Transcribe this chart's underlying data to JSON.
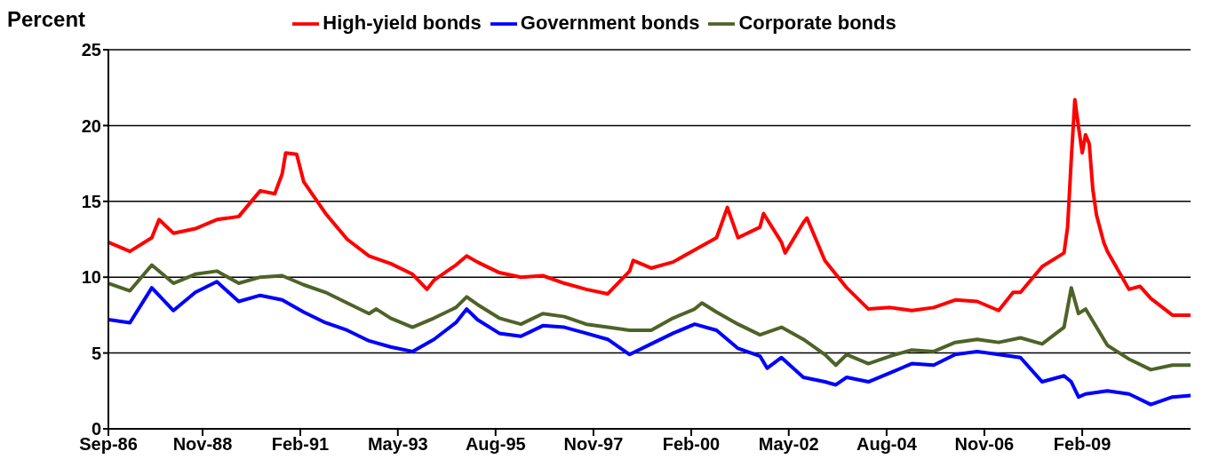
{
  "chart_data": {
    "type": "line",
    "ylabel": "Percent",
    "xlim": [
      "1986-09",
      "2011-08"
    ],
    "xticks": [
      {
        "value": "1986-09",
        "label": "Sep-86"
      },
      {
        "value": "1988-11",
        "label": "Nov-88"
      },
      {
        "value": "1991-02",
        "label": "Feb-91"
      },
      {
        "value": "1993-05",
        "label": "May-93"
      },
      {
        "value": "1995-08",
        "label": "Aug-95"
      },
      {
        "value": "1997-11",
        "label": "Nov-97"
      },
      {
        "value": "2000-02",
        "label": "Feb-00"
      },
      {
        "value": "2002-05",
        "label": "May-02"
      },
      {
        "value": "2004-08",
        "label": "Aug-04"
      },
      {
        "value": "2006-11",
        "label": "Nov-06"
      },
      {
        "value": "2009-02",
        "label": "Feb-09"
      }
    ],
    "ylim": [
      0,
      25
    ],
    "yticks": [
      0,
      5,
      10,
      15,
      20,
      25
    ],
    "grid": "y",
    "legend": "top",
    "marker": "none",
    "line_style": "solid",
    "series": [
      {
        "name": "High-yield bonds",
        "color": "#ff0000",
        "x": [
          "1986-09",
          "1987-03",
          "1987-09",
          "1987-11",
          "1988-03",
          "1988-09",
          "1989-03",
          "1989-09",
          "1990-03",
          "1990-07",
          "1990-09",
          "1990-10",
          "1991-01",
          "1991-03",
          "1991-09",
          "1992-03",
          "1992-09",
          "1993-03",
          "1993-09",
          "1994-01",
          "1994-03",
          "1994-09",
          "1994-12",
          "1995-03",
          "1995-09",
          "1996-03",
          "1996-09",
          "1997-03",
          "1997-09",
          "1998-03",
          "1998-09",
          "1998-10",
          "1999-03",
          "1999-09",
          "2000-03",
          "2000-09",
          "2000-12",
          "2001-03",
          "2001-09",
          "2001-10",
          "2002-03",
          "2002-04",
          "2002-09",
          "2002-10",
          "2003-03",
          "2003-09",
          "2004-03",
          "2004-09",
          "2005-03",
          "2005-09",
          "2006-03",
          "2006-09",
          "2007-03",
          "2007-07",
          "2007-09",
          "2008-03",
          "2008-09",
          "2008-10",
          "2008-11",
          "2008-12",
          "2009-01",
          "2009-02",
          "2009-03",
          "2009-04",
          "2009-05",
          "2009-06",
          "2009-08",
          "2009-09",
          "2010-03",
          "2010-06",
          "2010-09",
          "2011-03",
          "2011-08"
        ],
        "values": [
          12.3,
          11.7,
          12.6,
          13.8,
          12.9,
          13.2,
          13.8,
          14.0,
          15.7,
          15.5,
          16.8,
          18.2,
          18.1,
          16.3,
          14.2,
          12.5,
          11.4,
          10.9,
          10.2,
          9.2,
          9.8,
          10.8,
          11.4,
          11.0,
          10.3,
          10.0,
          10.1,
          9.6,
          9.2,
          8.9,
          10.4,
          11.1,
          10.6,
          11.0,
          11.8,
          12.6,
          14.6,
          12.6,
          13.3,
          14.2,
          12.3,
          11.6,
          13.6,
          13.9,
          11.1,
          9.3,
          7.9,
          8.0,
          7.8,
          8.0,
          8.5,
          8.4,
          7.8,
          9.0,
          9.0,
          10.7,
          11.6,
          13.3,
          17.8,
          21.7,
          19.9,
          18.2,
          19.4,
          18.8,
          15.8,
          14.1,
          12.3,
          11.7,
          9.2,
          9.4,
          8.6,
          7.5,
          7.5
        ]
      },
      {
        "name": "Government bonds",
        "color": "#0000ff",
        "x": [
          "1986-09",
          "1987-03",
          "1987-09",
          "1988-03",
          "1988-09",
          "1989-03",
          "1989-09",
          "1990-03",
          "1990-09",
          "1991-03",
          "1991-09",
          "1992-03",
          "1992-09",
          "1993-03",
          "1993-09",
          "1994-03",
          "1994-09",
          "1994-12",
          "1995-03",
          "1995-09",
          "1996-03",
          "1996-09",
          "1997-03",
          "1997-09",
          "1998-03",
          "1998-09",
          "1999-03",
          "1999-09",
          "2000-03",
          "2000-09",
          "2001-03",
          "2001-09",
          "2001-11",
          "2002-03",
          "2002-09",
          "2003-03",
          "2003-06",
          "2003-09",
          "2004-03",
          "2004-09",
          "2005-03",
          "2005-09",
          "2006-03",
          "2006-09",
          "2007-03",
          "2007-09",
          "2008-03",
          "2008-09",
          "2008-11",
          "2009-01",
          "2009-03",
          "2009-09",
          "2010-03",
          "2010-09",
          "2011-03",
          "2011-08"
        ],
        "values": [
          7.2,
          7.0,
          9.3,
          7.8,
          9.0,
          9.7,
          8.4,
          8.8,
          8.5,
          7.7,
          7.0,
          6.5,
          5.8,
          5.4,
          5.1,
          5.9,
          7.0,
          7.9,
          7.2,
          6.3,
          6.1,
          6.8,
          6.7,
          6.3,
          5.9,
          4.9,
          5.6,
          6.3,
          6.9,
          6.5,
          5.3,
          4.8,
          4.0,
          4.7,
          3.4,
          3.1,
          2.9,
          3.4,
          3.1,
          3.7,
          4.3,
          4.2,
          4.9,
          5.1,
          4.9,
          4.7,
          3.1,
          3.5,
          3.1,
          2.1,
          2.3,
          2.5,
          2.3,
          1.6,
          2.1,
          2.2
        ]
      },
      {
        "name": "Corporate bonds",
        "color": "#4f6228",
        "x": [
          "1986-09",
          "1987-03",
          "1987-09",
          "1988-03",
          "1988-09",
          "1989-03",
          "1989-09",
          "1990-03",
          "1990-09",
          "1991-03",
          "1991-09",
          "1992-03",
          "1992-09",
          "1992-11",
          "1993-03",
          "1993-09",
          "1994-03",
          "1994-09",
          "1994-12",
          "1995-03",
          "1995-09",
          "1996-03",
          "1996-09",
          "1997-03",
          "1997-09",
          "1998-03",
          "1998-09",
          "1999-03",
          "1999-09",
          "2000-03",
          "2000-05",
          "2000-09",
          "2001-03",
          "2001-09",
          "2002-03",
          "2002-09",
          "2003-03",
          "2003-06",
          "2003-09",
          "2004-03",
          "2004-09",
          "2005-03",
          "2005-09",
          "2006-03",
          "2006-09",
          "2007-03",
          "2007-09",
          "2008-03",
          "2008-09",
          "2008-11",
          "2009-01",
          "2009-03",
          "2009-09",
          "2010-03",
          "2010-09",
          "2011-03",
          "2011-08"
        ],
        "values": [
          9.6,
          9.1,
          10.8,
          9.6,
          10.2,
          10.4,
          9.6,
          10.0,
          10.1,
          9.5,
          9.0,
          8.3,
          7.6,
          7.9,
          7.3,
          6.7,
          7.3,
          8.0,
          8.7,
          8.2,
          7.3,
          6.9,
          7.6,
          7.4,
          6.9,
          6.7,
          6.5,
          6.5,
          7.3,
          7.9,
          8.3,
          7.7,
          6.9,
          6.2,
          6.7,
          5.9,
          4.9,
          4.2,
          4.9,
          4.3,
          4.8,
          5.2,
          5.1,
          5.7,
          5.9,
          5.7,
          6.0,
          5.6,
          6.7,
          9.3,
          7.6,
          7.9,
          5.5,
          4.6,
          3.9,
          4.2,
          4.2
        ]
      }
    ]
  }
}
